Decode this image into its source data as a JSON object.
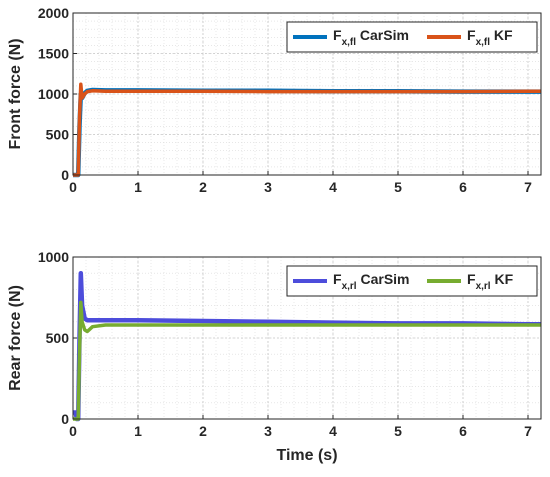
{
  "chart_data": [
    {
      "type": "line",
      "title": "",
      "xlabel": "",
      "ylabel": "Front force (N)",
      "xlim": [
        0,
        7.2
      ],
      "ylim": [
        0,
        2000
      ],
      "x_ticks": [
        0,
        1,
        2,
        3,
        4,
        5,
        6,
        7
      ],
      "y_ticks": [
        0,
        500,
        1000,
        1500,
        2000
      ],
      "grid": true,
      "legend_position": "top-right",
      "series": [
        {
          "name": "F_x,fl CarSim",
          "legend": {
            "main": "F",
            "sub": "x,fl",
            "rest": " CarSim"
          },
          "color": "#0072BD",
          "x": [
            0,
            0.04,
            0.06,
            0.08,
            0.1,
            0.12,
            0.14,
            0.18,
            0.22,
            0.3,
            0.5,
            1,
            2,
            3,
            4,
            5,
            6,
            7,
            7.2
          ],
          "values": [
            0,
            0,
            0,
            0,
            600,
            1000,
            950,
            1010,
            1040,
            1050,
            1045,
            1045,
            1040,
            1040,
            1035,
            1035,
            1030,
            1030,
            1030
          ]
        },
        {
          "name": "F_x,fl KF",
          "legend": {
            "main": "F",
            "sub": "x,fl",
            "rest": " KF"
          },
          "color": "#D95319",
          "x": [
            0,
            0.04,
            0.06,
            0.08,
            0.1,
            0.12,
            0.14,
            0.18,
            0.22,
            0.3,
            0.5,
            1,
            2,
            3,
            4,
            5,
            6,
            7,
            7.2
          ],
          "values": [
            0,
            0,
            0,
            0,
            700,
            1120,
            950,
            1000,
            1030,
            1040,
            1035,
            1035,
            1035,
            1030,
            1030,
            1030,
            1030,
            1035,
            1035
          ]
        }
      ]
    },
    {
      "type": "line",
      "title": "",
      "xlabel": "Time (s)",
      "ylabel": "Rear force (N)",
      "xlim": [
        0,
        7.2
      ],
      "ylim": [
        0,
        1000
      ],
      "x_ticks": [
        0,
        1,
        2,
        3,
        4,
        5,
        6,
        7
      ],
      "y_ticks": [
        0,
        500,
        1000
      ],
      "grid": true,
      "legend_position": "top-right",
      "series": [
        {
          "name": "F_x,rl CarSim",
          "legend": {
            "main": "F",
            "sub": "x,rl",
            "rest": " CarSim"
          },
          "color": "#4D4DDB",
          "x": [
            0,
            0.04,
            0.06,
            0.08,
            0.1,
            0.12,
            0.14,
            0.18,
            0.22,
            0.3,
            0.5,
            1,
            2,
            3,
            4,
            5,
            6,
            7,
            7.2
          ],
          "values": [
            40,
            40,
            0,
            0,
            500,
            900,
            700,
            620,
            610,
            610,
            610,
            610,
            605,
            600,
            595,
            590,
            590,
            585,
            585
          ]
        },
        {
          "name": "F_x,rl KF",
          "legend": {
            "main": "F",
            "sub": "x,rl",
            "rest": " KF"
          },
          "color": "#77AC30",
          "x": [
            0,
            0.04,
            0.06,
            0.08,
            0.1,
            0.12,
            0.14,
            0.18,
            0.22,
            0.3,
            0.5,
            1,
            2,
            3,
            4,
            5,
            6,
            7,
            7.2
          ],
          "values": [
            0,
            0,
            0,
            0,
            400,
            720,
            600,
            550,
            540,
            570,
            580,
            580,
            580,
            580,
            580,
            580,
            580,
            580,
            580
          ]
        }
      ]
    }
  ]
}
